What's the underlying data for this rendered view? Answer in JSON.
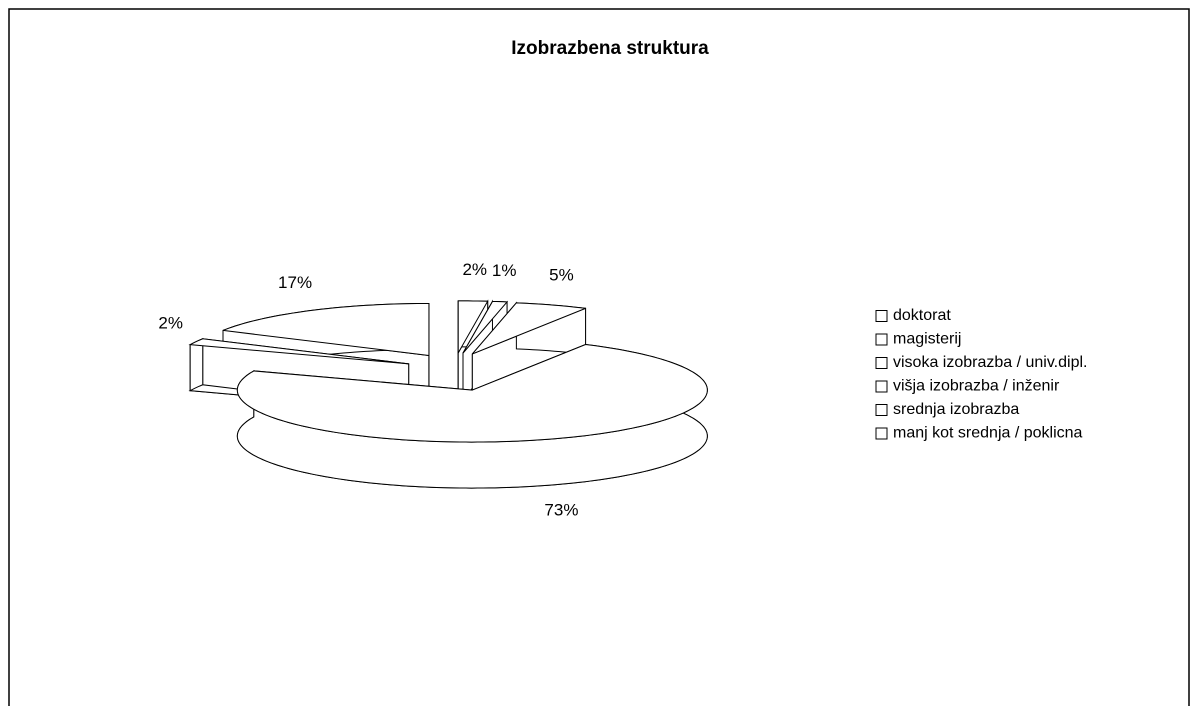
{
  "chart_data": {
    "type": "pie",
    "title": "Izobrazbena struktura",
    "categories": [
      "doktorat",
      "magisterij",
      "visoka izobrazba / univ.dipl.",
      "višja izobrazba / inženir",
      "srednja izobrazba",
      "manj kot srednja / poklicna"
    ],
    "values": [
      2,
      1,
      5,
      73,
      2,
      17
    ],
    "value_labels": [
      "2%",
      "1%",
      "5%",
      "73%",
      "2%",
      "17%"
    ],
    "color": "#ffffff",
    "legend": "right"
  }
}
